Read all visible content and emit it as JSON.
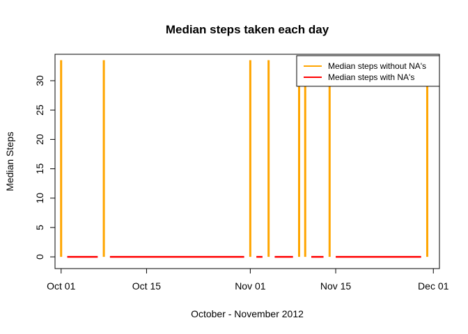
{
  "chart_data": {
    "type": "line",
    "title": "Median steps taken each day",
    "xlabel": "October - November 2012",
    "ylabel": "Median Steps",
    "xlim": [
      "2012-09-30",
      "2012-12-02"
    ],
    "ylim": [
      -2,
      34.5
    ],
    "x_ticks": [
      "2012-10-01",
      "2012-10-15",
      "2012-11-01",
      "2012-11-15",
      "2012-12-01"
    ],
    "x_tick_labels": [
      "Oct 01",
      "Oct 15",
      "Nov 01",
      "Nov 15",
      "Dec 01"
    ],
    "y_ticks": [
      0,
      5,
      10,
      15,
      20,
      25,
      30
    ],
    "y_tick_labels": [
      "0",
      "5",
      "10",
      "15",
      "20",
      "25",
      "30"
    ],
    "grid": false,
    "legend_position": "top-right",
    "series": [
      {
        "name": "Median steps without NA's",
        "color": "#FFA500",
        "spikes": [
          "2012-10-01",
          "2012-10-08",
          "2012-11-01",
          "2012-11-04",
          "2012-11-09",
          "2012-11-10",
          "2012-11-14",
          "2012-11-30"
        ],
        "spike_value": 33.5,
        "base_value": 0
      },
      {
        "name": "Median steps with NA's",
        "color": "#FF0000",
        "segments": [
          [
            "2012-10-02",
            "2012-10-07"
          ],
          [
            "2012-10-09",
            "2012-10-31"
          ],
          [
            "2012-11-02",
            "2012-11-03"
          ],
          [
            "2012-11-05",
            "2012-11-08"
          ],
          [
            "2012-11-11",
            "2012-11-13"
          ],
          [
            "2012-11-15",
            "2012-11-29"
          ]
        ],
        "value": 0
      }
    ]
  }
}
